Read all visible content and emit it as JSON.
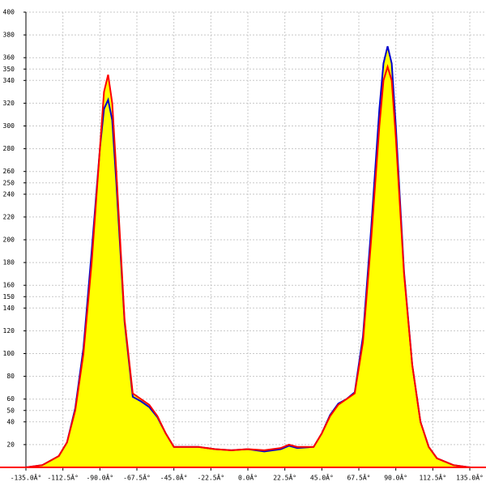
{
  "chart_data": {
    "type": "area",
    "x": [
      -135,
      -125,
      -115,
      -110,
      -105,
      -100,
      -95,
      -90,
      -87.5,
      -85,
      -82.5,
      -80,
      -75,
      -70,
      -65,
      -60,
      -55,
      -50,
      -45,
      -40,
      -30,
      -20,
      -10,
      0,
      10,
      20,
      25,
      30,
      40,
      45,
      50,
      55,
      60,
      65,
      70,
      75,
      80,
      82.5,
      85,
      87.5,
      90,
      95,
      100,
      105,
      110,
      115,
      125,
      135
    ],
    "series": [
      {
        "color": "#0000cc",
        "values": [
          0,
          2,
          10,
          22,
          52,
          105,
          190,
          280,
          315,
          323,
          305,
          250,
          128,
          62,
          58,
          53,
          44,
          30,
          18,
          18,
          18,
          16,
          15,
          16,
          14,
          16,
          19,
          17,
          18,
          30,
          46,
          56,
          60,
          66,
          115,
          210,
          315,
          355,
          370,
          355,
          300,
          172,
          90,
          40,
          18,
          8,
          2,
          0
        ]
      },
      {
        "color": "#ff0000",
        "values": [
          0,
          2,
          10,
          22,
          50,
          100,
          180,
          280,
          330,
          345,
          320,
          260,
          130,
          65,
          60,
          55,
          45,
          30,
          18,
          18,
          18,
          16,
          15,
          16,
          15,
          17,
          20,
          18,
          18,
          30,
          45,
          55,
          60,
          65,
          110,
          200,
          300,
          340,
          352,
          340,
          290,
          170,
          90,
          40,
          18,
          8,
          2,
          0
        ]
      }
    ],
    "fill": "#ffff00",
    "xlim": [
      -135,
      135
    ],
    "xticks": [
      {
        "value": -135,
        "label": "-135.0Â°"
      },
      {
        "value": -112.5,
        "label": "-112.5Â°"
      },
      {
        "value": -90,
        "label": "-90.0Â°"
      },
      {
        "value": -67.5,
        "label": "-67.5Â°"
      },
      {
        "value": -45,
        "label": "-45.0Â°"
      },
      {
        "value": -22.5,
        "label": "-22.5Â°"
      },
      {
        "value": 0,
        "label": "0.0Â°"
      },
      {
        "value": 22.5,
        "label": "22.5Â°"
      },
      {
        "value": 45,
        "label": "45.0Â°"
      },
      {
        "value": 67.5,
        "label": "67.5Â°"
      },
      {
        "value": 90,
        "label": "90.0Â°"
      },
      {
        "value": 112.5,
        "label": "112.5Â°"
      },
      {
        "value": 135,
        "label": "135.0Â°"
      }
    ],
    "ylim": [
      0,
      400
    ],
    "yticks": [
      20,
      40,
      50,
      60,
      80,
      100,
      120,
      140,
      150,
      160,
      180,
      200,
      220,
      240,
      250,
      260,
      280,
      300,
      320,
      340,
      350,
      360,
      380,
      400
    ],
    "grid": true
  }
}
